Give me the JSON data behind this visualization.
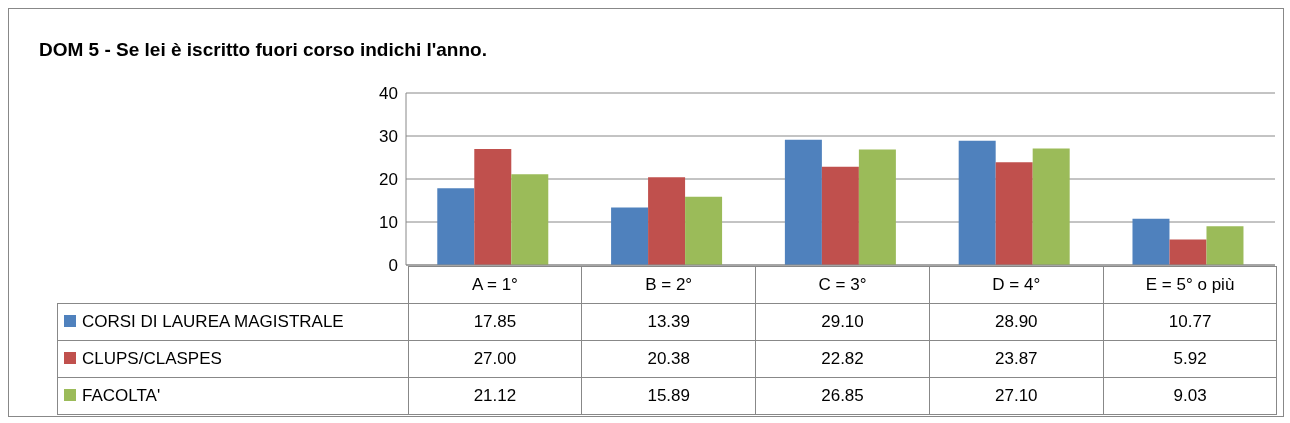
{
  "chart_data": {
    "type": "bar",
    "title": "DOM 5 - Se lei è iscritto fuori corso indichi l'anno.",
    "categories": [
      "A = 1°",
      "B = 2°",
      "C = 3°",
      "D = 4°",
      "E = 5° o più"
    ],
    "series": [
      {
        "name": "CORSI DI LAUREA MAGISTRALE",
        "color": "#4f81bd",
        "values": [
          17.85,
          13.39,
          29.1,
          28.9,
          10.77
        ],
        "value_labels": [
          "17.85",
          "13.39",
          "29.10",
          "28.90",
          "10.77"
        ]
      },
      {
        "name": "CLUPS/CLASPES",
        "color": "#c0504d",
        "values": [
          27.0,
          20.38,
          22.82,
          23.87,
          5.92
        ],
        "value_labels": [
          "27.00",
          "20.38",
          "22.82",
          "23.87",
          "5.92"
        ]
      },
      {
        "name": "FACOLTA'",
        "color": "#9bbb59",
        "values": [
          21.12,
          15.89,
          26.85,
          27.1,
          9.03
        ],
        "value_labels": [
          "21.12",
          "15.89",
          "26.85",
          "27.10",
          "9.03"
        ]
      }
    ],
    "ylim": [
      0,
      40
    ],
    "yticks": [
      0,
      10,
      20,
      30,
      40
    ],
    "grid": "y",
    "legend": "bottom"
  }
}
